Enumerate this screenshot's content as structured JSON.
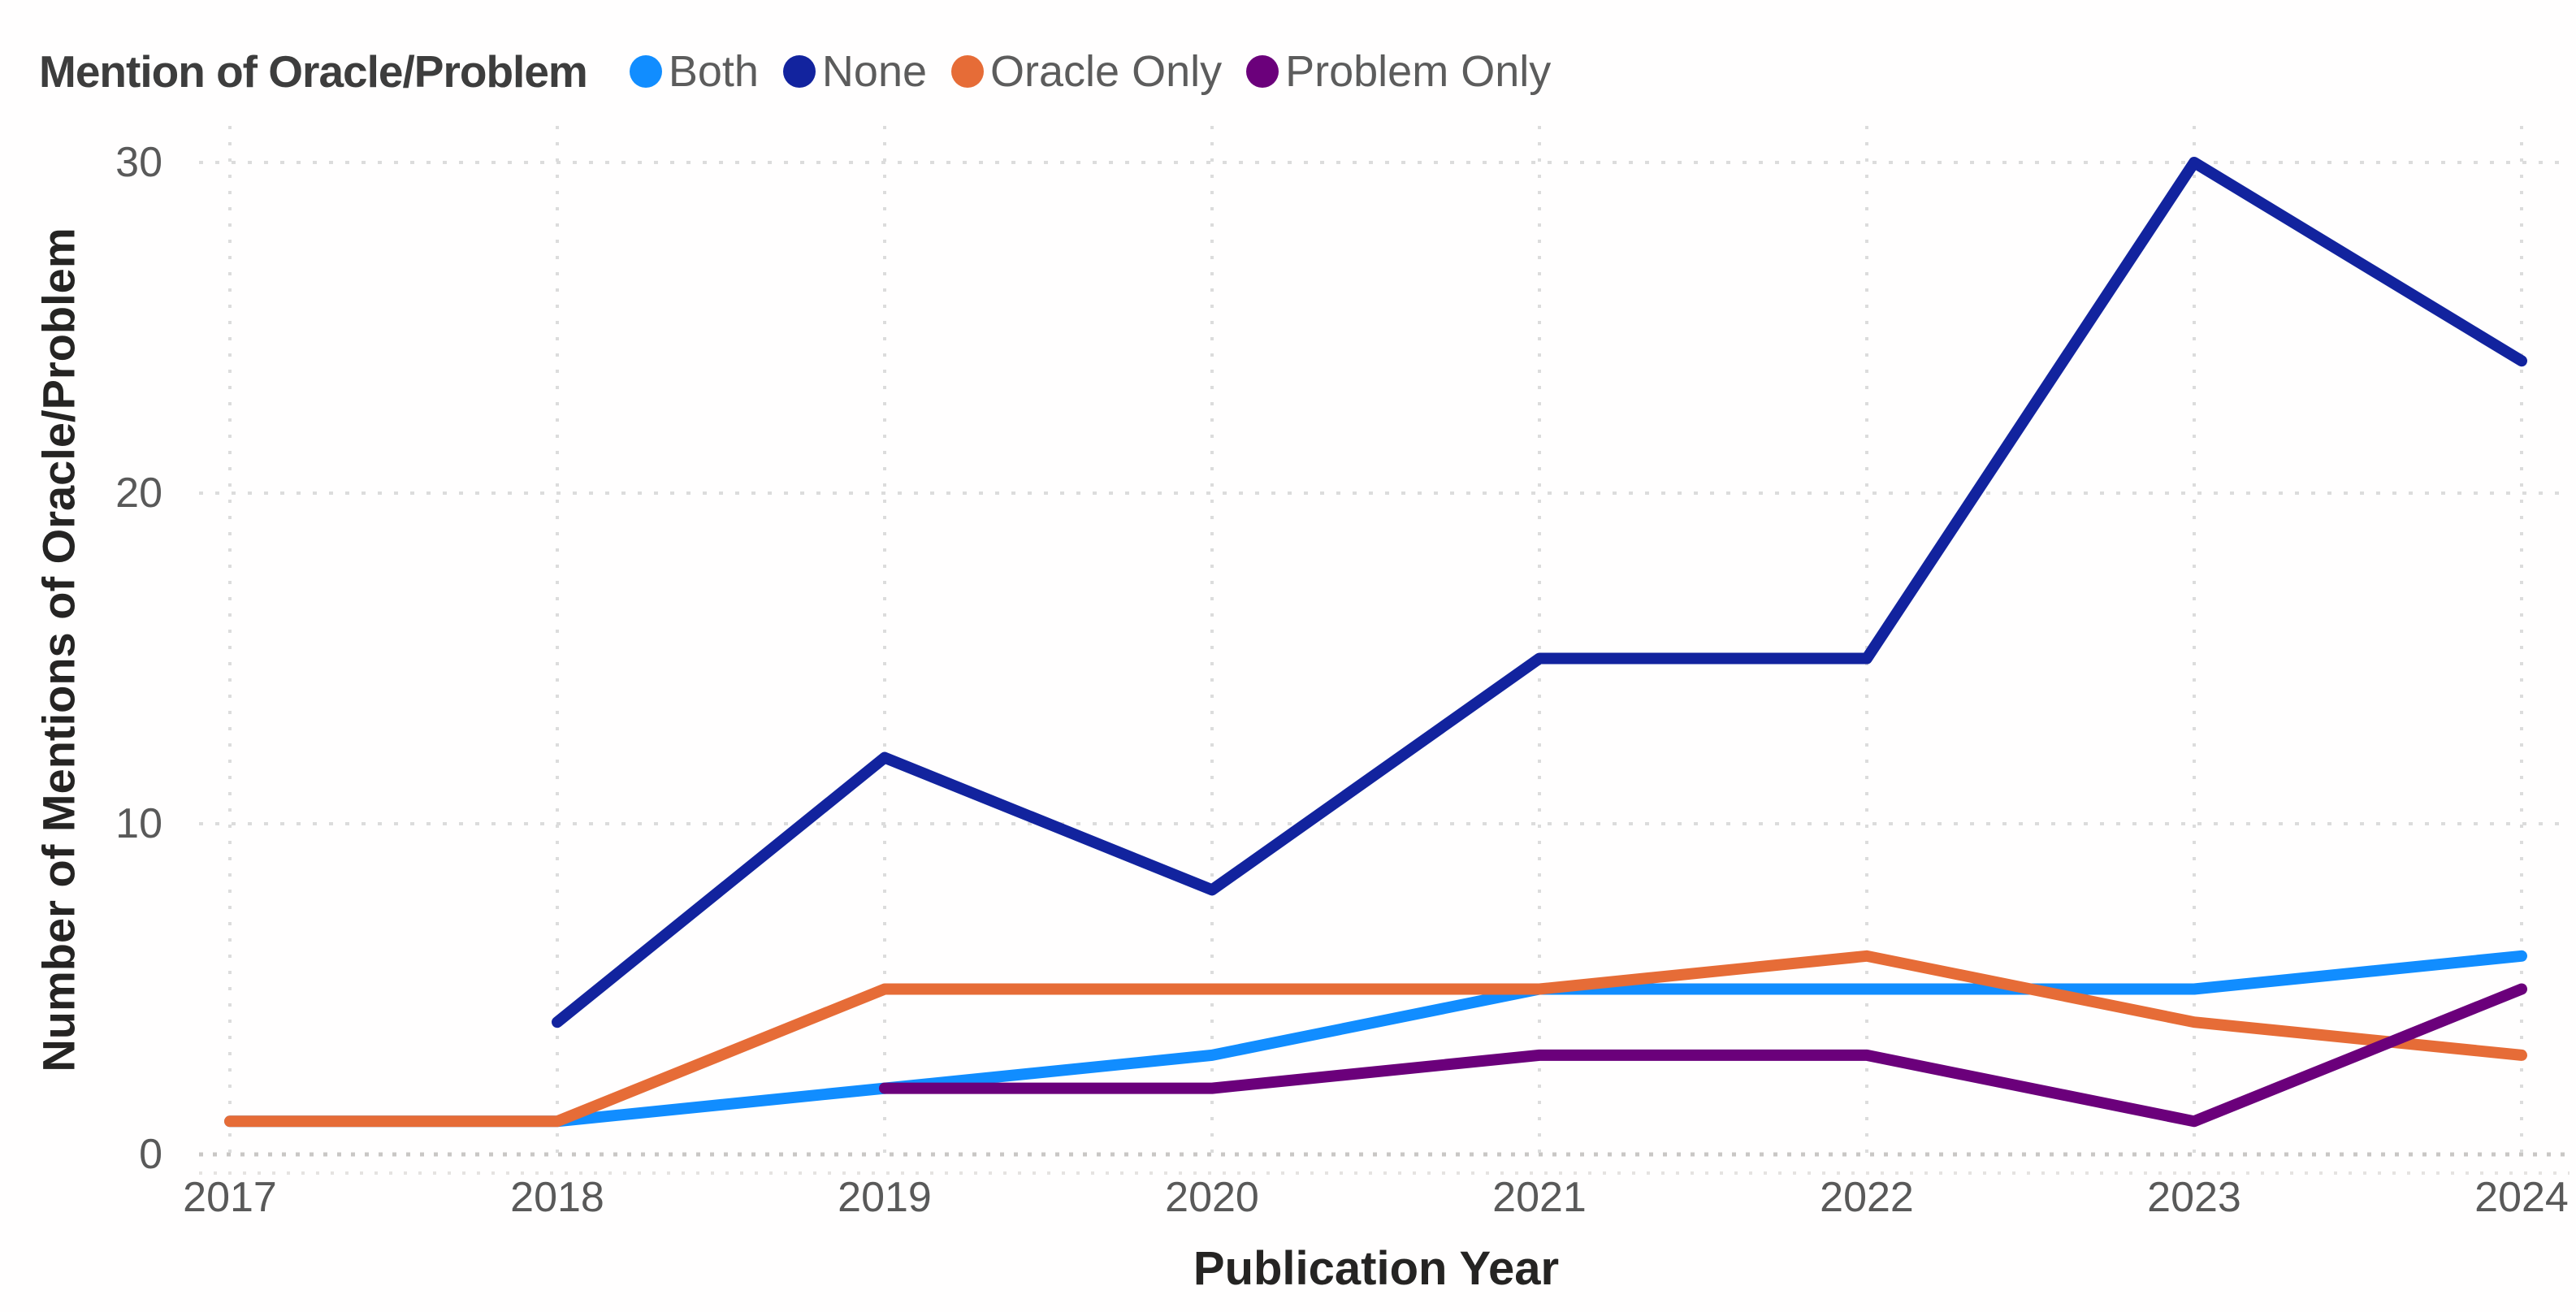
{
  "legend": {
    "title": "Mention of Oracle/Problem",
    "items": [
      {
        "label": "Both",
        "color": "#118DFF"
      },
      {
        "label": "None",
        "color": "#12239E"
      },
      {
        "label": "Oracle Only",
        "color": "#E66C37"
      },
      {
        "label": "Problem Only",
        "color": "#6B007B"
      }
    ]
  },
  "axes": {
    "x_title": "Publication Year",
    "y_title": "Number of Mentions of Oracle/Problem",
    "x_tick_labels": [
      "2017",
      "2018",
      "2019",
      "2020",
      "2021",
      "2022",
      "2023",
      "2024"
    ],
    "y_tick_labels": [
      "0",
      "10",
      "20",
      "30"
    ]
  },
  "chart_data": {
    "type": "line",
    "title": "",
    "x": [
      2017,
      2018,
      2019,
      2020,
      2021,
      2022,
      2023,
      2024
    ],
    "series": [
      {
        "name": "Both",
        "color": "#118DFF",
        "values": [
          1,
          1,
          2,
          3,
          5,
          5,
          5,
          6
        ]
      },
      {
        "name": "None",
        "color": "#12239E",
        "values": [
          null,
          4,
          12,
          8,
          15,
          15,
          30,
          24
        ]
      },
      {
        "name": "Oracle Only",
        "color": "#E66C37",
        "values": [
          1,
          1,
          5,
          5,
          5,
          6,
          4,
          3
        ]
      },
      {
        "name": "Problem Only",
        "color": "#6B007B",
        "values": [
          null,
          null,
          2,
          2,
          3,
          3,
          1,
          5
        ]
      }
    ],
    "xlabel": "Publication Year",
    "ylabel": "Number of Mentions of Oracle/Problem",
    "yticks": [
      0,
      10,
      20,
      30
    ],
    "ylim": [
      0,
      31
    ],
    "grid": "dotted",
    "legend_position": "top-left"
  },
  "colors": {
    "background": "#FFFFFF",
    "gridline": "#DCDCDC",
    "zero_line": "#C9C7C5",
    "axis_subline": "#E5E3E1",
    "tick_label": "#595959",
    "axis_title": "#252423",
    "legend_title": "#3D3D3D",
    "legend_label": "#5C5C5C"
  }
}
